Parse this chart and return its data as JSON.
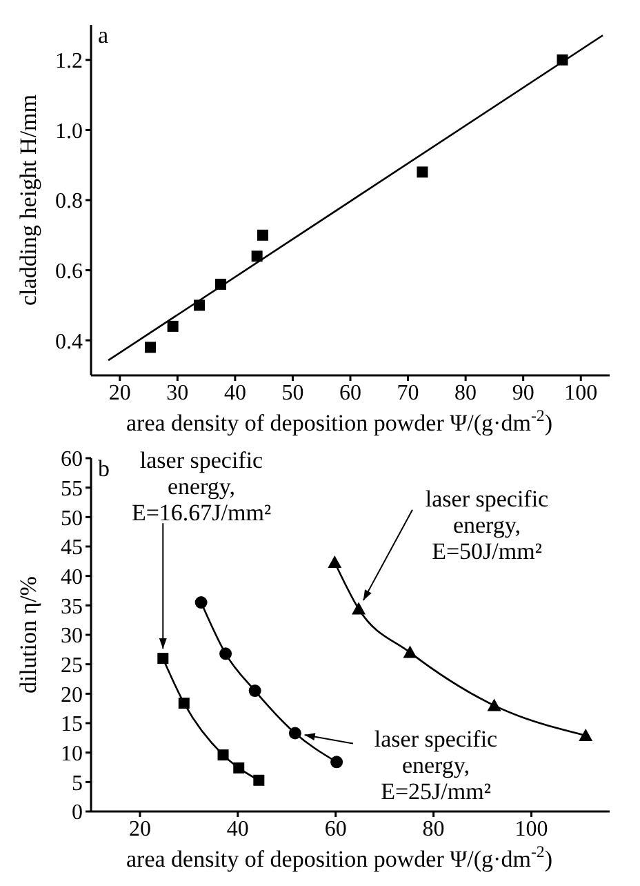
{
  "chart_data": [
    {
      "type": "scatter",
      "annotations": [
        "a"
      ],
      "xlabel": "area density of deposition powder Ψ/(g·dm$^{-2}$)",
      "ylabel": "cladding height H/mm",
      "xlim": [
        15,
        105
      ],
      "xticks": [
        20,
        30,
        40,
        50,
        60,
        70,
        80,
        90,
        100
      ],
      "ylim": [
        0.3,
        1.3
      ],
      "yticks": [
        0.4,
        0.6,
        0.8,
        {
          "value": 1,
          "label": "1.0"
        },
        1.2
      ],
      "series": [
        {
          "color": "#000000",
          "marker": "square",
          "x": [
            25.3,
            29.2,
            33.8,
            37.5,
            43.8,
            44.8,
            72.5,
            96.8
          ],
          "values": [
            0.38,
            0.44,
            0.5,
            0.56,
            0.64,
            0.7,
            0.88,
            1.2
          ]
        },
        {
          "type": "line",
          "color": "#000000",
          "marker": "none",
          "x": [
            18,
            103.8
          ],
          "values": [
            0.343,
            1.27
          ]
        }
      ]
    },
    {
      "type": "line",
      "annotations": [
        "b"
      ],
      "xlabel": "area density of deposition powder Ψ/(g·dm$^{-2}$)",
      "ylabel": "dilution η/%",
      "xlim": [
        10,
        116
      ],
      "xticks": [
        20,
        40,
        60,
        80,
        100
      ],
      "ylim": [
        0,
        60
      ],
      "yticks": [
        0,
        5,
        10,
        15,
        20,
        25,
        30,
        35,
        40,
        45,
        50,
        55,
        60
      ],
      "series": [
        {
          "name": "laser specific energy, E=16.67J/mm²",
          "color": "#000000",
          "marker": "square",
          "x": [
            24.7,
            29,
            37,
            40.2,
            44.3
          ],
          "values": [
            26,
            18.4,
            9.6,
            7.4,
            5.3
          ]
        },
        {
          "name": "laser specific energy, E=25J/mm²",
          "color": "#000000",
          "marker": "circle",
          "x": [
            32.5,
            37.5,
            43.5,
            51.7,
            60.2
          ],
          "values": [
            35.5,
            26.8,
            20.5,
            13.3,
            8.4
          ]
        },
        {
          "name": "laser specific energy, E=50J/mm²",
          "color": "#000000",
          "marker": "triangle",
          "x": [
            59.8,
            64.7,
            75.2,
            92.4,
            111.1
          ],
          "values": [
            42.3,
            34.4,
            27,
            18,
            12.9
          ]
        }
      ]
    }
  ]
}
